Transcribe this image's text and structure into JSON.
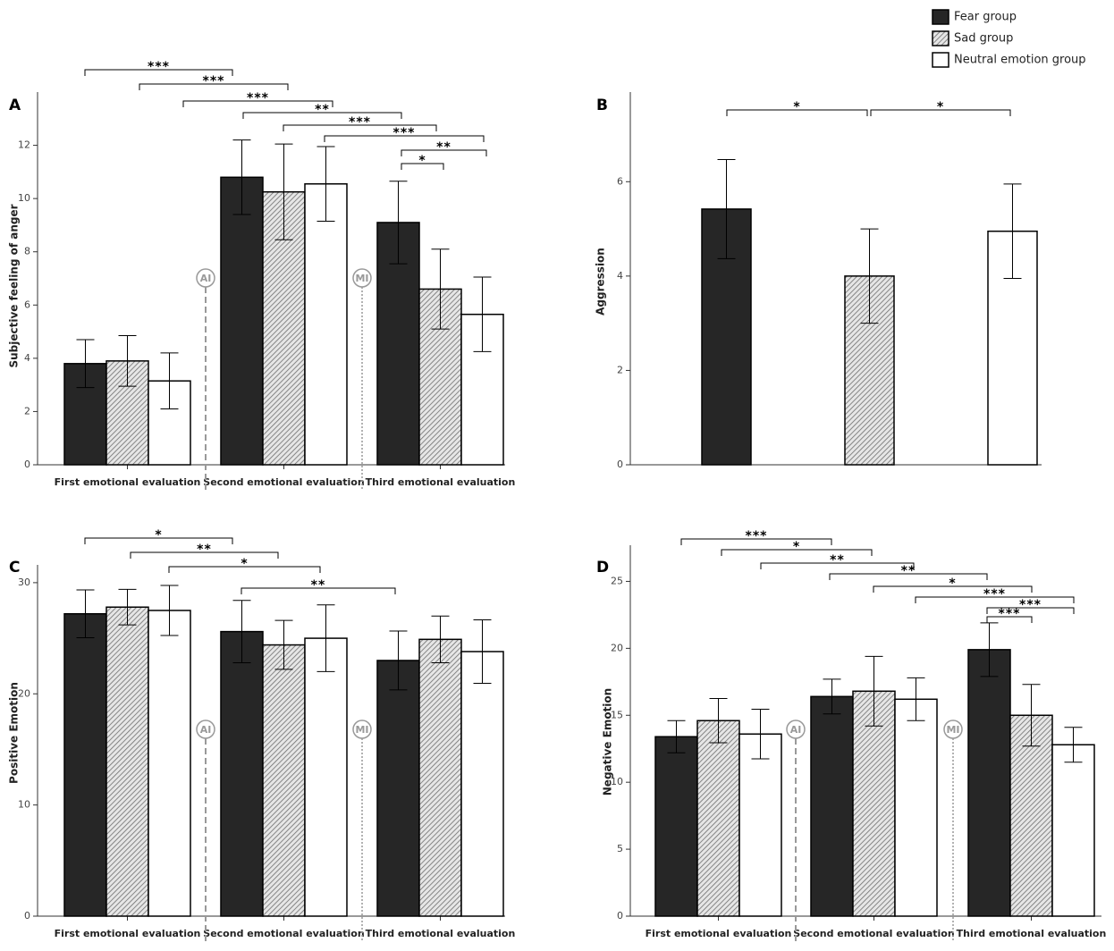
{
  "chart_data": [
    {
      "type": "bar",
      "title": "A",
      "ylabel": "Subjective feeling of anger",
      "categories": [
        "First emotional evaluation",
        "Second emotional evaluation",
        "Third emotional evaluation"
      ],
      "series": [
        {
          "name": "Fear group",
          "color": "#262626",
          "values": [
            3.8,
            10.8,
            9.1
          ],
          "errors": [
            0.9,
            1.4,
            1.55
          ]
        },
        {
          "name": "Sad group",
          "color": "#6e6e6e",
          "hatch": true,
          "values": [
            3.9,
            10.25,
            6.6
          ],
          "errors": [
            0.95,
            1.8,
            1.5
          ]
        },
        {
          "name": "Neutral emotion group",
          "color": "#ffffff",
          "values": [
            3.15,
            10.55,
            5.65
          ],
          "errors": [
            1.05,
            1.4,
            1.4
          ]
        }
      ],
      "ylim": [
        0,
        14
      ],
      "yticks": [
        0,
        2,
        4,
        6,
        8,
        10,
        12
      ],
      "markers": [
        "AI",
        "MI"
      ],
      "significance": [
        "***",
        "***",
        "***",
        "**",
        "***",
        "***",
        "**",
        "*"
      ]
    },
    {
      "type": "bar",
      "title": "B",
      "ylabel": "Aggression",
      "categories": [
        null
      ],
      "series": [
        {
          "name": "Fear group",
          "color": "#262626",
          "values": [
            5.42
          ],
          "errors": [
            1.05
          ]
        },
        {
          "name": "Sad group",
          "color": "#6e6e6e",
          "hatch": true,
          "values": [
            4.0
          ],
          "errors": [
            1.0
          ]
        },
        {
          "name": "Neutral emotion group",
          "color": "#ffffff",
          "values": [
            4.95
          ],
          "errors": [
            1.0
          ]
        }
      ],
      "ylim": [
        0,
        7.9
      ],
      "yticks": [
        0,
        2,
        4,
        6
      ],
      "significance": [
        "*",
        "*"
      ]
    },
    {
      "type": "bar",
      "title": "C",
      "ylabel": "Positive Emotion",
      "categories": [
        "First emotional evaluation",
        "Second emotional evaluation",
        "Third emotional evaluation"
      ],
      "series": [
        {
          "name": "Fear group",
          "color": "#262626",
          "values": [
            27.2,
            25.6,
            23.0
          ],
          "errors": [
            2.15,
            2.8,
            2.65
          ]
        },
        {
          "name": "Sad group",
          "color": "#6e6e6e",
          "hatch": true,
          "values": [
            27.8,
            24.4,
            24.9
          ],
          "errors": [
            1.6,
            2.2,
            2.1
          ]
        },
        {
          "name": "Neutral emotion group",
          "color": "#ffffff",
          "values": [
            27.5,
            25.0,
            23.8
          ],
          "errors": [
            2.25,
            3.0,
            2.85
          ]
        }
      ],
      "ylim": [
        0,
        31.6
      ],
      "yticks": [
        0,
        10,
        20,
        30
      ],
      "markers": [
        "AI",
        "MI"
      ],
      "significance": [
        "*",
        "**",
        "*",
        "**"
      ]
    },
    {
      "type": "bar",
      "title": "D",
      "ylabel": "Negative Emotion",
      "categories": [
        "First emotional evaluation",
        "Second emotional evaluation",
        "Third emotional evaluation"
      ],
      "series": [
        {
          "name": "Fear group",
          "color": "#262626",
          "values": [
            13.4,
            16.4,
            19.9
          ],
          "errors": [
            1.2,
            1.3,
            2.0
          ]
        },
        {
          "name": "Sad group",
          "color": "#6e6e6e",
          "hatch": true,
          "values": [
            14.6,
            16.8,
            15.0
          ],
          "errors": [
            1.65,
            2.6,
            2.3
          ]
        },
        {
          "name": "Neutral emotion group",
          "color": "#ffffff",
          "values": [
            13.6,
            16.2,
            12.8
          ],
          "errors": [
            1.85,
            1.6,
            1.3
          ]
        }
      ],
      "ylim": [
        0,
        27.7
      ],
      "yticks": [
        0,
        5,
        10,
        15,
        20,
        25
      ],
      "markers": [
        "AI",
        "MI"
      ],
      "significance": [
        "***",
        "*",
        "**",
        "**",
        "*",
        "***",
        "***",
        "***"
      ]
    }
  ]
}
